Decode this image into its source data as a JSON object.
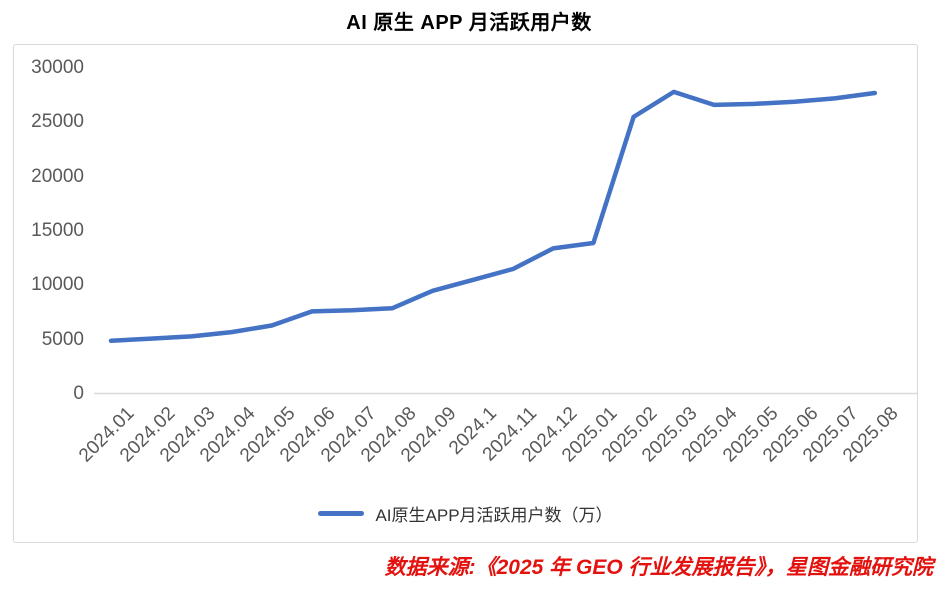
{
  "title": "AI 原生 APP 月活跃用户数",
  "source_note": "数据来源:《2025 年 GEO 行业发展报告》，星图金融研究院",
  "colors": {
    "line": "#4472C4",
    "axis_label": "#595959",
    "border": "#D9D9D9",
    "axis_line": "#D9D9D9",
    "title": "#000000",
    "source": "#E3120E",
    "legend_text": "#333333"
  },
  "legend": {
    "label": "AI原生APP月活跃用户数（万）"
  },
  "chart_data": {
    "type": "line",
    "title": "AI 原生 APP 月活跃用户数",
    "categories": [
      "2024.01",
      "2024.02",
      "2024.03",
      "2024.04",
      "2024.05",
      "2024.06",
      "2024.07",
      "2024.08",
      "2024.09",
      "2024.1",
      "2024.11",
      "2024.12",
      "2025.01",
      "2025.02",
      "2025.03",
      "2025.04",
      "2025.05",
      "2025.06",
      "2025.07",
      "2025.08"
    ],
    "series": [
      {
        "name": "AI原生APP月活跃用户数（万）",
        "values": [
          4900,
          5100,
          5300,
          5700,
          6300,
          7600,
          7700,
          7900,
          9500,
          10500,
          11500,
          13400,
          13900,
          25500,
          27800,
          26600,
          26700,
          26900,
          27200,
          27700
        ]
      }
    ],
    "xlabel": "",
    "ylabel": "",
    "unit": "万",
    "ylim": [
      0,
      30000
    ],
    "y_tick_step": 5000,
    "y_tick_labels": [
      "0",
      "5000",
      "10000",
      "15000",
      "20000",
      "25000",
      "30000"
    ],
    "grid": false,
    "legend_position": "bottom"
  }
}
